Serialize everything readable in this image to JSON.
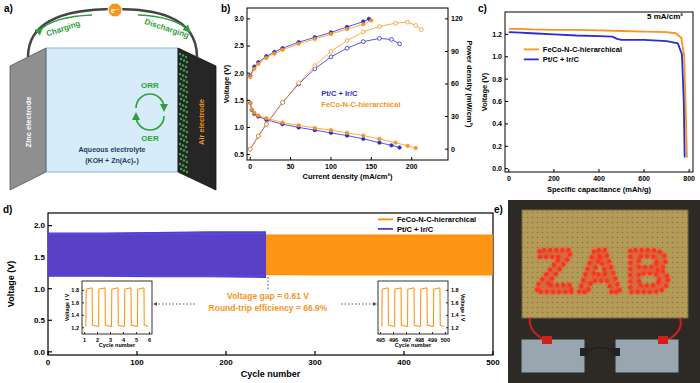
{
  "panel_labels": [
    "a)",
    "b)",
    "c)",
    "d)",
    "e)"
  ],
  "schematic": {
    "electron": "e⁻",
    "charging": "Charging",
    "discharging": "Discharging",
    "zinc_electrode": "Zinc electrode",
    "electrolyte": "Aqueous electrolyte",
    "electrolyte_composition": "(KOH + Zn(Ac)₂)",
    "air_electrode": "Air electrode",
    "orr": "ORR",
    "oer": "OER"
  },
  "chart_data": [
    {
      "type": "line",
      "x_label": "Current density (mA/cm²)",
      "y_label": "Voltage (V)",
      "y2_label": "Power density (mW/cm²)",
      "xlim": [
        -4,
        245
      ],
      "xticks": [
        0,
        50,
        100,
        150,
        200
      ],
      "ylim": [
        0.4,
        3.2
      ],
      "yticks": [
        0.5,
        {
          "value": 1,
          "label": "1.0"
        },
        1.5,
        {
          "value": 2,
          "label": "2.0"
        },
        2.5,
        {
          "value": 3,
          "label": "3.0"
        }
      ],
      "y2lim": [
        -10,
        130
      ],
      "y2ticks": [
        0,
        30,
        60,
        90,
        120
      ],
      "legend": "center",
      "series": [
        {
          "name": "Pt/C + Ir/C",
          "color": "#2b2bd9",
          "marker": "circle",
          "line_style": "solid",
          "x": [
            0,
            5,
            10,
            20,
            30,
            40,
            60,
            80,
            100,
            120,
            140,
            147
          ],
          "values": [
            1.95,
            2.12,
            2.2,
            2.31,
            2.39,
            2.46,
            2.57,
            2.66,
            2.75,
            2.85,
            2.95,
            3.0
          ]
        },
        {
          "name": "Pt/C + Ir/C",
          "color": "#2b2bd9",
          "marker": "circle",
          "line_style": "solid",
          "x": [
            0,
            2,
            5,
            10,
            20,
            40,
            60,
            80,
            100,
            120,
            140,
            160,
            175,
            185
          ],
          "values": [
            1.45,
            1.32,
            1.25,
            1.2,
            1.14,
            1.06,
            1.0,
            0.95,
            0.9,
            0.85,
            0.79,
            0.72,
            0.67,
            0.63
          ]
        },
        {
          "name": "Pt/C + Ir/C",
          "color": "#2b2bd9",
          "marker": "open_circle",
          "line_style": "solid",
          "axis": "y2",
          "x": [
            0,
            10,
            20,
            40,
            60,
            80,
            100,
            120,
            140,
            160,
            175,
            185
          ],
          "values": [
            0,
            12,
            23,
            43,
            60,
            74,
            85,
            93,
            99,
            102,
            101,
            97
          ]
        },
        {
          "name": "FeCo-N-C-hierarchical",
          "color": "#f7941d",
          "marker": "circle",
          "line_style": "solid",
          "x": [
            0,
            5,
            10,
            20,
            30,
            40,
            60,
            80,
            100,
            120,
            140,
            150
          ],
          "values": [
            1.93,
            2.08,
            2.17,
            2.28,
            2.36,
            2.43,
            2.54,
            2.63,
            2.72,
            2.81,
            2.9,
            2.97
          ]
        },
        {
          "name": "FeCo-N-C-hierarchical",
          "color": "#f7941d",
          "marker": "circle",
          "line_style": "solid",
          "x": [
            0,
            2,
            5,
            10,
            20,
            40,
            60,
            80,
            100,
            120,
            140,
            160,
            180,
            195,
            205
          ],
          "values": [
            1.45,
            1.33,
            1.27,
            1.22,
            1.17,
            1.09,
            1.04,
            0.99,
            0.95,
            0.9,
            0.85,
            0.79,
            0.72,
            0.66,
            0.62
          ]
        },
        {
          "name": "FeCo-N-C-hierarchical",
          "color": "#f7941d",
          "marker": "open_circle",
          "line_style": "solid",
          "axis": "y2",
          "x": [
            0,
            10,
            20,
            40,
            60,
            80,
            100,
            120,
            140,
            160,
            180,
            195,
            205,
            212
          ],
          "values": [
            0,
            12,
            23,
            43,
            61,
            77,
            90,
            100,
            108,
            113,
            116,
            117,
            114,
            110
          ]
        }
      ]
    },
    {
      "type": "line",
      "x_label": "Specific capacitance (mAh/g)",
      "y_label": "Voltage (V)",
      "annotations": [
        "5 mA/cm²"
      ],
      "xlim": [
        -17,
        817
      ],
      "xticks": [
        0,
        200,
        400,
        600,
        800
      ],
      "ylim": [
        -0.03,
        1.4
      ],
      "yticks": [
        {
          "value": 0,
          "label": "0.0"
        },
        0.2,
        0.4,
        0.6,
        0.8,
        {
          "value": 1,
          "label": "1.0"
        },
        1.2
      ],
      "legend": "upper left",
      "series": [
        {
          "name": "FeCo-N-C-hierarchical",
          "color": "#f7941d",
          "line_style": "solid",
          "x": [
            0,
            50,
            100,
            200,
            300,
            400,
            500,
            600,
            700,
            740,
            765,
            778,
            785,
            790
          ],
          "values": [
            1.25,
            1.25,
            1.245,
            1.24,
            1.24,
            1.235,
            1.23,
            1.225,
            1.22,
            1.21,
            1.17,
            1.0,
            0.5,
            0.1
          ]
        },
        {
          "name": "Pt/C + Ir/C",
          "color": "#2b2bd9",
          "line_style": "solid",
          "x": [
            0,
            50,
            100,
            200,
            300,
            400,
            460,
            480,
            500,
            600,
            700,
            750,
            768,
            776,
            780
          ],
          "values": [
            1.22,
            1.215,
            1.21,
            1.2,
            1.19,
            1.185,
            1.18,
            1.16,
            1.15,
            1.15,
            1.14,
            1.12,
            1.02,
            0.6,
            0.1
          ]
        }
      ]
    },
    {
      "type": "band",
      "x_label": "Cycle number",
      "y_label": "Voltage (V)",
      "annotations": [
        "Voltage gap = 0.61 V",
        "Round-trip efficiency = 66.9%"
      ],
      "xlim": [
        0,
        500
      ],
      "xticks": [
        0,
        100,
        200,
        300,
        400,
        500
      ],
      "ylim": [
        -0.05,
        2.2
      ],
      "yticks": [
        {
          "value": 0,
          "label": "0.0"
        },
        0.5,
        {
          "value": 1,
          "label": "1.0"
        },
        1.5,
        {
          "value": 2,
          "label": "2.0"
        }
      ],
      "legend": "upper right",
      "series": [
        {
          "name": "FeCo-N-C-hierarchical",
          "color": "#ff8c00",
          "x": [
            0,
            100,
            200,
            300,
            400,
            500
          ],
          "charge": [
            1.84,
            1.84,
            1.85,
            1.85,
            1.85,
            1.85
          ],
          "discharge": [
            1.23,
            1.23,
            1.23,
            1.22,
            1.22,
            1.22
          ]
        },
        {
          "name": "Pt/C + Ir/C",
          "color": "#4a3ad6",
          "x": [
            0,
            60,
            120,
            180,
            245
          ],
          "charge": [
            1.88,
            1.88,
            1.89,
            1.9,
            1.9
          ],
          "discharge": [
            1.2,
            1.2,
            1.19,
            1.19,
            1.18
          ]
        }
      ],
      "insets": [
        {
          "type": "line",
          "x_label": "Cycle number",
          "y_label": "Voltage / V",
          "xlim": [
            0.8,
            6.2
          ],
          "xticks": [
            1,
            2,
            3,
            4,
            5,
            6
          ],
          "ylim": [
            1.1,
            1.95
          ],
          "yticks": [
            1.2,
            1.4,
            1.6,
            1.8
          ],
          "series": [
            {
              "color": "#ff8c00",
              "line_style": "solid",
              "x": [
                1.1,
                1.12,
                1.58,
                1.6,
                2.08,
                2.1,
                2.58,
                2.6,
                3.08,
                3.1,
                3.58,
                3.6,
                4.08,
                4.1,
                4.58,
                4.6,
                5.08,
                5.1,
                5.58,
                5.6,
                5.9
              ],
              "values": [
                1.22,
                1.82,
                1.84,
                1.24,
                1.22,
                1.82,
                1.84,
                1.24,
                1.22,
                1.82,
                1.84,
                1.24,
                1.22,
                1.82,
                1.84,
                1.24,
                1.22,
                1.82,
                1.84,
                1.24,
                1.22
              ]
            }
          ]
        },
        {
          "type": "line",
          "x_label": "Cycle number",
          "y_label": "Voltage / V",
          "xlim": [
            494.8,
            500.2
          ],
          "xticks": [
            495,
            496,
            497,
            498,
            499,
            500
          ],
          "ylim": [
            1.1,
            1.95
          ],
          "yticks": [
            1.2,
            1.4,
            1.6,
            1.8
          ],
          "series": [
            {
              "color": "#ff8c00",
              "line_style": "solid",
              "x": [
                495.1,
                495.12,
                495.58,
                495.6,
                496.08,
                496.1,
                496.58,
                496.6,
                497.08,
                497.1,
                497.58,
                497.6,
                498.08,
                498.1,
                498.58,
                498.6,
                499.08,
                499.1,
                499.58,
                499.6,
                499.9
              ],
              "values": [
                1.22,
                1.82,
                1.84,
                1.24,
                1.22,
                1.82,
                1.84,
                1.24,
                1.22,
                1.82,
                1.84,
                1.24,
                1.22,
                1.82,
                1.84,
                1.24,
                1.22,
                1.82,
                1.84,
                1.24,
                1.22
              ]
            }
          ]
        }
      ]
    }
  ],
  "photo": {
    "display_text": "ZAB"
  }
}
